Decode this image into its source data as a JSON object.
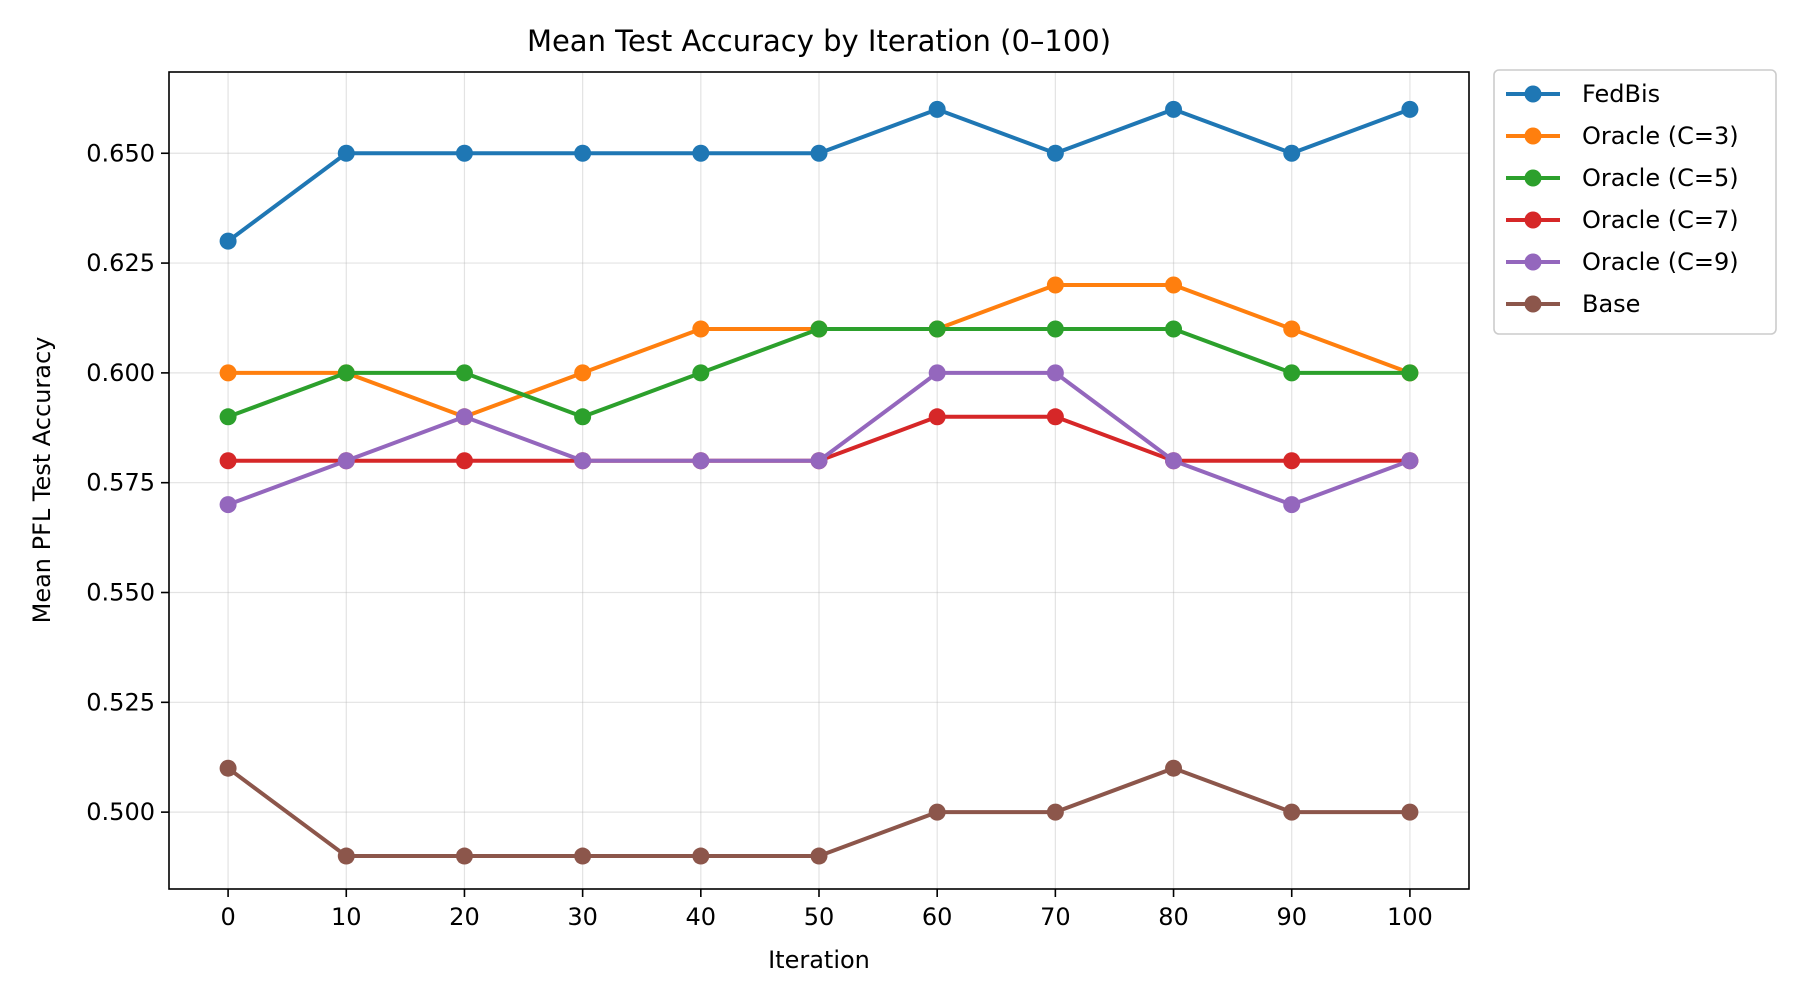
{
  "chart_data": {
    "type": "line",
    "title": "Mean Test Accuracy by Iteration (0–100)",
    "xlabel": "Iteration",
    "ylabel": "Mean PFL Test Accuracy",
    "x": [
      0,
      10,
      20,
      30,
      40,
      50,
      60,
      70,
      80,
      90,
      100
    ],
    "x_ticks": [
      "0",
      "10",
      "20",
      "30",
      "40",
      "50",
      "60",
      "70",
      "80",
      "90",
      "100"
    ],
    "y_ticks": [
      "0.500",
      "0.525",
      "0.550",
      "0.575",
      "0.600",
      "0.625",
      "0.650"
    ],
    "xlim": [
      -5,
      105
    ],
    "ylim": [
      0.4825,
      0.6685
    ],
    "grid": true,
    "legend_position": "outside-top-right",
    "series": [
      {
        "name": "FedBis",
        "color": "#1f77b4",
        "values": [
          0.63,
          0.65,
          0.65,
          0.65,
          0.65,
          0.65,
          0.66,
          0.65,
          0.66,
          0.65,
          0.66
        ]
      },
      {
        "name": "Oracle (C=3)",
        "color": "#ff7f0e",
        "values": [
          0.6,
          0.6,
          0.59,
          0.6,
          0.61,
          0.61,
          0.61,
          0.62,
          0.62,
          0.61,
          0.6
        ]
      },
      {
        "name": "Oracle (C=5)",
        "color": "#2ca02c",
        "values": [
          0.59,
          0.6,
          0.6,
          0.59,
          0.6,
          0.61,
          0.61,
          0.61,
          0.61,
          0.6,
          0.6
        ]
      },
      {
        "name": "Oracle (C=7)",
        "color": "#d62728",
        "values": [
          0.58,
          0.58,
          0.58,
          0.58,
          0.58,
          0.58,
          0.59,
          0.59,
          0.58,
          0.58,
          0.58
        ]
      },
      {
        "name": "Oracle (C=9)",
        "color": "#9467bd",
        "values": [
          0.57,
          0.58,
          0.59,
          0.58,
          0.58,
          0.58,
          0.6,
          0.6,
          0.58,
          0.57,
          0.58
        ]
      },
      {
        "name": "Base",
        "color": "#8c564b",
        "values": [
          0.51,
          0.49,
          0.49,
          0.49,
          0.49,
          0.49,
          0.5,
          0.5,
          0.51,
          0.5,
          0.5
        ]
      }
    ]
  }
}
